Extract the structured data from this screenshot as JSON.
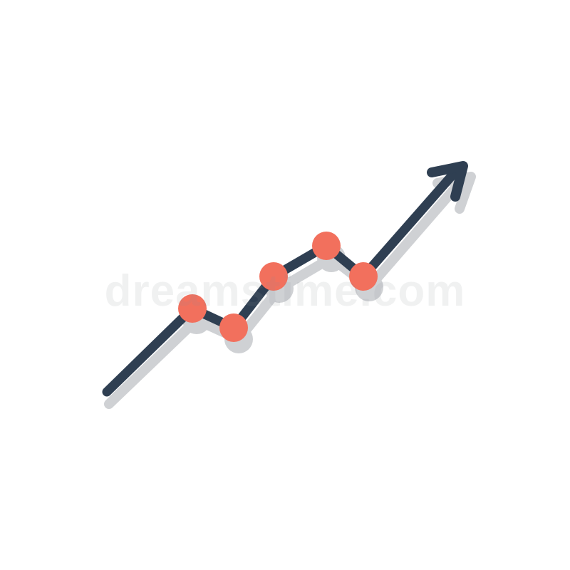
{
  "icon": {
    "name": "trending-up-chart-icon",
    "colors": {
      "background": "#ffffff",
      "line": "#2f3f52",
      "marker": "#f2705d",
      "shadow": "#cfd1d4"
    }
  },
  "watermark": {
    "text": "dreamstime.com",
    "color": "#8a8f96"
  }
}
